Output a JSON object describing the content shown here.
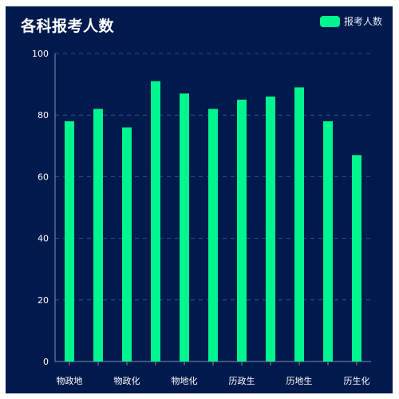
{
  "chart_data": {
    "type": "bar",
    "title": "各科报考人数",
    "categories": [
      "物政地",
      "",
      "物政化",
      "",
      "物地化",
      "",
      "历政生",
      "",
      "历地生",
      "",
      "历生化"
    ],
    "series": [
      {
        "name": "报考人数",
        "values": [
          78,
          82,
          76,
          91,
          87,
          82,
          85,
          86,
          89,
          78,
          67
        ]
      }
    ],
    "yticks": [
      "0",
      "20",
      "40",
      "60",
      "80",
      "100"
    ],
    "ylim": [
      0,
      100
    ],
    "grid": true,
    "legend_position": "top-right",
    "bar_color": "#00f58e",
    "background_color": "#011a4d"
  }
}
